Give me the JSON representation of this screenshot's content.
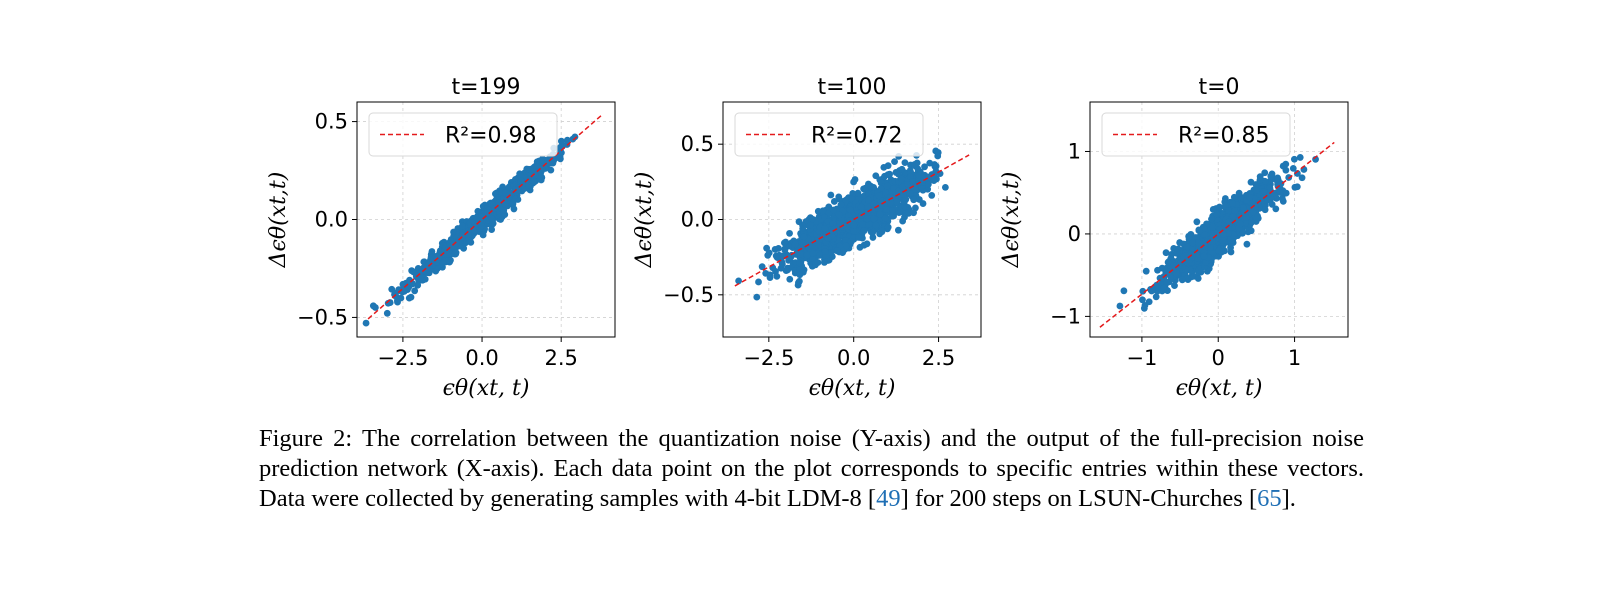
{
  "chart_data": [
    {
      "type": "scatter",
      "title": "t=199",
      "xlabel": "ϵθ(xt, t)",
      "ylabel": "Δϵθ(xt,t)",
      "xlim": [
        -3.95,
        4.2
      ],
      "ylim": [
        -0.6,
        0.6
      ],
      "xticks": [
        -2.5,
        0.0,
        2.5
      ],
      "xtick_labels": [
        "−2.5",
        "0.0",
        "2.5"
      ],
      "yticks": [
        -0.5,
        0.0,
        0.5
      ],
      "ytick_labels": [
        "−0.5",
        "0.0",
        "0.5"
      ],
      "grid": true,
      "legend": {
        "placement": "top-left",
        "entries": [
          {
            "label": "R²=0.98",
            "r2": 0.98,
            "style": "dashed",
            "color": "#e41a1c"
          }
        ]
      },
      "fit_line": {
        "slope": 0.141,
        "intercept": 0.0,
        "x": [
          -3.6,
          3.8
        ]
      },
      "scatter": {
        "color": "#1f77b4",
        "n_points": 900,
        "x_std": 1.15,
        "noise_std": 0.028,
        "x_range": [
          -3.7,
          3.8
        ],
        "r2": 0.98
      }
    },
    {
      "type": "scatter",
      "title": "t=100",
      "xlabel": "ϵθ(xt, t)",
      "ylabel": "Δϵθ(xt,t)",
      "xlim": [
        -3.85,
        3.75
      ],
      "ylim": [
        -0.78,
        0.78
      ],
      "xticks": [
        -2.5,
        0.0,
        2.5
      ],
      "xtick_labels": [
        "−2.5",
        "0.0",
        "2.5"
      ],
      "yticks": [
        -0.5,
        0.0,
        0.5
      ],
      "ytick_labels": [
        "−0.5",
        "0.0",
        "0.5"
      ],
      "grid": true,
      "legend": {
        "placement": "top-left",
        "entries": [
          {
            "label": "R²=0.72",
            "r2": 0.72,
            "style": "dashed",
            "color": "#e41a1c"
          }
        ]
      },
      "fit_line": {
        "slope": 0.126,
        "intercept": 0.0,
        "x": [
          -3.5,
          3.4
        ]
      },
      "scatter": {
        "color": "#1f77b4",
        "n_points": 1400,
        "x_std": 1.0,
        "noise_std": 0.078,
        "x_range": [
          -3.5,
          3.4
        ],
        "r2": 0.72
      }
    },
    {
      "type": "scatter",
      "title": "t=0",
      "xlabel": "ϵθ(xt, t)",
      "ylabel": "Δϵθ(xt,t)",
      "xlim": [
        -1.68,
        1.7
      ],
      "ylim": [
        -1.25,
        1.6
      ],
      "xticks": [
        -1,
        0,
        1
      ],
      "xtick_labels": [
        "−1",
        "0",
        "1"
      ],
      "yticks": [
        -1,
        0,
        1
      ],
      "ytick_labels": [
        "−1",
        "0",
        "1"
      ],
      "grid": true,
      "legend": {
        "placement": "top-left",
        "entries": [
          {
            "label": "R²=0.85",
            "r2": 0.85,
            "style": "dashed",
            "color": "#e41a1c"
          }
        ]
      },
      "fit_line": {
        "slope": 0.73,
        "intercept": 0.0,
        "x": [
          -1.55,
          1.52
        ]
      },
      "scatter": {
        "color": "#1f77b4",
        "n_points": 1400,
        "x_std": 0.38,
        "noise_std": 0.12,
        "x_range": [
          -1.55,
          1.5
        ],
        "r2": 0.85
      }
    }
  ],
  "caption": {
    "part1": "Figure 2: The correlation between the quantization noise (Y-axis) and the output of the full-precision noise prediction network (X-axis). Each data point on the plot corresponds to specific entries within these vectors. Data were collected by generating samples with 4-bit LDM-8 [",
    "ref1": "49",
    "part2": "] for 200 steps on LSUN-Churches [",
    "ref2": "65",
    "part3": "]."
  }
}
